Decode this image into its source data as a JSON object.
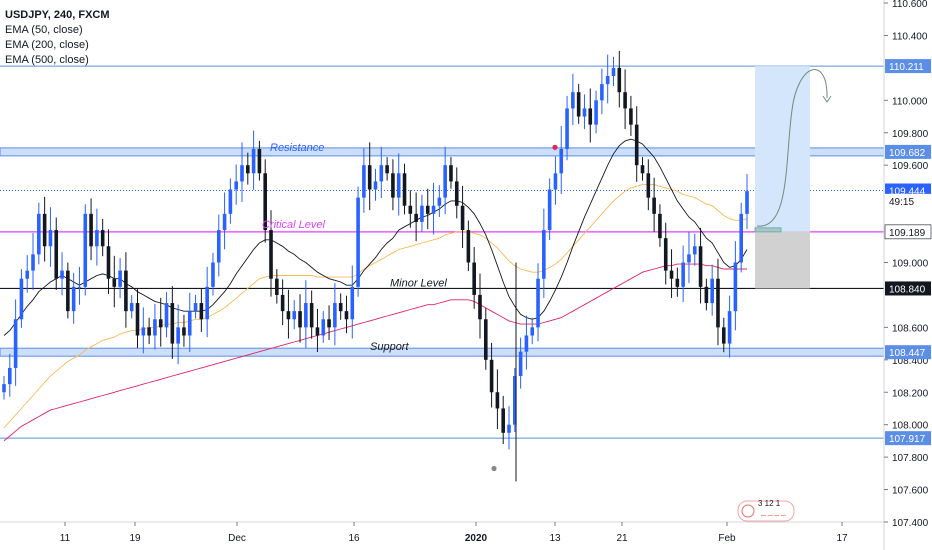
{
  "legend": {
    "symbol": "USDJPY, 240, FXCM",
    "ema50": "EMA (50, close)",
    "ema200": "EMA (200, close)",
    "ema500": "EMA (500, close)"
  },
  "colors": {
    "up": "#2962ff",
    "down": "#131722",
    "ema50": "#131722",
    "ema200": "#f7b955",
    "ema500": "#e0245e",
    "zone": "#bbd3f5",
    "critical": "#e040fb",
    "minor": "#131722",
    "support_line": "#5b8ee6"
  },
  "chart_data": {
    "type": "candlestick",
    "symbol": "USDJPY",
    "timeframe": "240",
    "ylim": [
      107.4,
      110.6
    ],
    "y_ticks": [
      "110.600",
      "110.400",
      "110.000",
      "109.800",
      "109.600",
      "109.000",
      "108.600",
      "108.400",
      "108.200",
      "108.000",
      "107.800",
      "107.600",
      "107.400"
    ],
    "x_ticks": [
      "11",
      "19",
      "Dec",
      "16",
      "2020",
      "13",
      "21",
      "Feb",
      "17"
    ],
    "price_labels": [
      {
        "text": "110.211",
        "value": 110.211
      },
      {
        "text": "109.682",
        "value": 109.682
      },
      {
        "text": "109.444",
        "value": 109.444
      },
      {
        "text": "49:15",
        "value": 109.38
      },
      {
        "text": "109.189",
        "value": 109.189
      },
      {
        "text": "108.840",
        "value": 108.84
      },
      {
        "text": "108.447",
        "value": 108.447
      },
      {
        "text": "107.917",
        "value": 107.917
      }
    ],
    "levels": [
      {
        "name": "Resistance",
        "value": 109.682,
        "kind": "zone"
      },
      {
        "name": "Critical Level",
        "value": 109.189,
        "kind": "line"
      },
      {
        "name": "Minor Level",
        "value": 108.84,
        "kind": "line"
      },
      {
        "name": "Support",
        "value": 108.447,
        "kind": "zone"
      }
    ],
    "series_close": [
      108.25,
      108.35,
      108.65,
      108.9,
      108.95,
      109.05,
      109.3,
      109.1,
      109.2,
      108.9,
      108.95,
      108.7,
      108.85,
      108.85,
      109.3,
      109.1,
      109.2,
      109.1,
      108.9,
      108.85,
      108.95,
      108.7,
      108.75,
      108.55,
      108.6,
      108.55,
      108.65,
      108.6,
      108.75,
      108.5,
      108.6,
      108.55,
      108.7,
      108.75,
      108.65,
      108.85,
      109.0,
      109.2,
      109.3,
      109.45,
      109.5,
      109.6,
      109.55,
      109.7,
      109.55,
      109.2,
      108.9,
      108.8,
      108.7,
      108.65,
      108.7,
      108.6,
      108.75,
      108.6,
      108.55,
      108.65,
      108.6,
      108.75,
      108.7,
      108.65,
      108.85,
      109.4,
      109.6,
      109.45,
      109.5,
      109.6,
      109.55,
      109.4,
      109.55,
      109.35,
      109.3,
      109.25,
      109.35,
      109.3,
      109.35,
      109.4,
      109.6,
      109.5,
      109.35,
      109.2,
      109.0,
      108.8,
      108.65,
      108.4,
      108.2,
      108.1,
      107.95,
      108.0,
      108.3,
      108.45,
      108.55,
      108.6,
      108.9,
      109.2,
      109.45,
      109.55,
      109.7,
      109.95,
      110.05,
      109.9,
      109.95,
      109.85,
      110.0,
      110.1,
      110.15,
      110.2,
      110.05,
      109.95,
      109.85,
      109.6,
      109.55,
      109.4,
      109.3,
      109.15,
      108.95,
      108.9,
      108.85,
      109.0,
      109.05,
      109.1,
      108.85,
      108.75,
      108.9,
      108.6,
      108.5,
      108.7,
      109.0,
      109.3,
      109.44
    ],
    "ema50": [
      108.55,
      108.58,
      108.63,
      108.68,
      108.73,
      108.77,
      108.82,
      108.85,
      108.88,
      108.9,
      108.92,
      108.9,
      108.88,
      108.86,
      108.88,
      108.9,
      108.92,
      108.93,
      108.92,
      108.9,
      108.9,
      108.87,
      108.85,
      108.82,
      108.8,
      108.78,
      108.76,
      108.75,
      108.74,
      108.72,
      108.71,
      108.7,
      108.7,
      108.7,
      108.7,
      108.71,
      108.74,
      108.78,
      108.82,
      108.87,
      108.93,
      108.98,
      109.03,
      109.08,
      109.12,
      109.14,
      109.14,
      109.12,
      109.1,
      109.07,
      109.05,
      109.02,
      109.0,
      108.97,
      108.94,
      108.92,
      108.9,
      108.89,
      108.88,
      108.86,
      108.86,
      108.9,
      108.95,
      108.99,
      109.03,
      109.08,
      109.12,
      109.15,
      109.2,
      109.22,
      109.24,
      109.26,
      109.28,
      109.29,
      109.31,
      109.33,
      109.36,
      109.38,
      109.38,
      109.37,
      109.34,
      109.3,
      109.24,
      109.17,
      109.08,
      108.98,
      108.88,
      108.79,
      108.73,
      108.68,
      108.66,
      108.65,
      108.66,
      108.7,
      108.76,
      108.83,
      108.91,
      109.0,
      109.1,
      109.19,
      109.28,
      109.36,
      109.44,
      109.52,
      109.6,
      109.67,
      109.72,
      109.75,
      109.76,
      109.75,
      109.73,
      109.69,
      109.65,
      109.59,
      109.52,
      109.45,
      109.38,
      109.33,
      109.28,
      109.25,
      109.2,
      109.15,
      109.12,
      109.06,
      109.0,
      108.97,
      108.98,
      109.02,
      109.08
    ],
    "ema200": [
      107.98,
      108.02,
      108.06,
      108.1,
      108.14,
      108.18,
      108.22,
      108.26,
      108.3,
      108.33,
      108.36,
      108.39,
      108.41,
      108.43,
      108.46,
      108.48,
      108.5,
      108.52,
      108.53,
      108.54,
      108.56,
      108.57,
      108.58,
      108.58,
      108.59,
      108.6,
      108.6,
      108.61,
      108.62,
      108.62,
      108.63,
      108.63,
      108.64,
      108.65,
      108.65,
      108.66,
      108.68,
      108.7,
      108.72,
      108.75,
      108.78,
      108.81,
      108.84,
      108.87,
      108.9,
      108.91,
      108.92,
      108.92,
      108.92,
      108.92,
      108.92,
      108.92,
      108.92,
      108.92,
      108.91,
      108.91,
      108.91,
      108.91,
      108.91,
      108.91,
      108.91,
      108.93,
      108.96,
      108.98,
      109.0,
      109.02,
      109.04,
      109.06,
      109.08,
      109.09,
      109.1,
      109.11,
      109.12,
      109.13,
      109.14,
      109.15,
      109.17,
      109.18,
      109.19,
      109.19,
      109.19,
      109.18,
      109.17,
      109.15,
      109.12,
      109.09,
      109.05,
      109.01,
      108.98,
      108.96,
      108.95,
      108.94,
      108.94,
      108.95,
      108.97,
      108.99,
      109.02,
      109.06,
      109.1,
      109.14,
      109.18,
      109.22,
      109.26,
      109.3,
      109.34,
      109.38,
      109.41,
      109.44,
      109.46,
      109.47,
      109.48,
      109.48,
      109.48,
      109.47,
      109.46,
      109.45,
      109.44,
      109.42,
      109.41,
      109.4,
      109.38,
      109.36,
      109.35,
      109.32,
      109.29,
      109.27,
      109.26,
      109.26,
      109.27
    ],
    "ema500": [
      107.9,
      107.93,
      107.96,
      107.99,
      108.01,
      108.03,
      108.05,
      108.07,
      108.09,
      108.1,
      108.11,
      108.12,
      108.13,
      108.14,
      108.15,
      108.16,
      108.17,
      108.18,
      108.19,
      108.2,
      108.21,
      108.22,
      108.23,
      108.24,
      108.25,
      108.26,
      108.27,
      108.28,
      108.29,
      108.3,
      108.31,
      108.32,
      108.33,
      108.34,
      108.35,
      108.36,
      108.37,
      108.38,
      108.39,
      108.4,
      108.41,
      108.42,
      108.43,
      108.44,
      108.45,
      108.46,
      108.47,
      108.48,
      108.49,
      108.5,
      108.51,
      108.52,
      108.53,
      108.54,
      108.55,
      108.56,
      108.57,
      108.58,
      108.59,
      108.6,
      108.61,
      108.62,
      108.63,
      108.64,
      108.65,
      108.66,
      108.67,
      108.68,
      108.69,
      108.7,
      108.71,
      108.72,
      108.73,
      108.74,
      108.74,
      108.75,
      108.76,
      108.77,
      108.77,
      108.77,
      108.77,
      108.76,
      108.74,
      108.72,
      108.7,
      108.68,
      108.66,
      108.64,
      108.63,
      108.62,
      108.62,
      108.62,
      108.62,
      108.63,
      108.64,
      108.65,
      108.66,
      108.68,
      108.7,
      108.72,
      108.74,
      108.76,
      108.78,
      108.8,
      108.82,
      108.84,
      108.86,
      108.88,
      108.9,
      108.92,
      108.94,
      108.95,
      108.96,
      108.97,
      108.98,
      108.98,
      108.99,
      108.99,
      108.99,
      108.99,
      108.99,
      108.98,
      108.98,
      108.97,
      108.96,
      108.96,
      108.96,
      108.96,
      108.96
    ],
    "long_position": {
      "entry": 109.189,
      "target": 110.211,
      "stop": 108.84
    }
  },
  "watermark": "3 12 1"
}
